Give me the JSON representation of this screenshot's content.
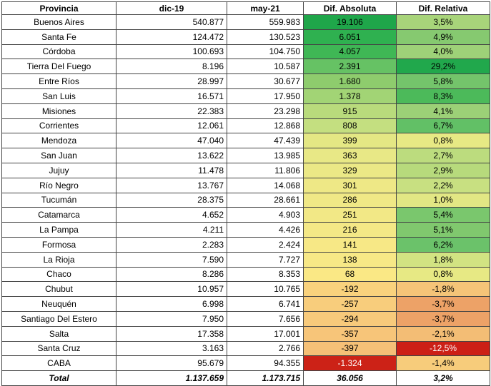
{
  "headers": [
    "Provincia",
    "dic-19",
    "may-21",
    "Dif. Absoluta",
    "Dif. Relativa"
  ],
  "rows": [
    {
      "provincia": "Buenos Aires",
      "dic19": "540.877",
      "may21": "559.983",
      "abs": "19.106",
      "rel": "3,5%",
      "abs_color": "#1fa64a",
      "rel_color": "#a8d47a"
    },
    {
      "provincia": "Santa Fe",
      "dic19": "124.472",
      "may21": "130.523",
      "abs": "6.051",
      "rel": "4,9%",
      "abs_color": "#2fb150",
      "rel_color": "#86c970"
    },
    {
      "provincia": "Córdoba",
      "dic19": "100.693",
      "may21": "104.750",
      "abs": "4.057",
      "rel": "4,0%",
      "abs_color": "#3fb755",
      "rel_color": "#9ed178"
    },
    {
      "provincia": "Tierra Del Fuego",
      "dic19": "8.196",
      "may21": "10.587",
      "abs": "2.391",
      "rel": "29,2%",
      "abs_color": "#66c264",
      "rel_color": "#21a84c"
    },
    {
      "provincia": "Entre Ríos",
      "dic19": "28.997",
      "may21": "30.677",
      "abs": "1.680",
      "rel": "5,8%",
      "abs_color": "#8ecc6d",
      "rel_color": "#74c46b"
    },
    {
      "provincia": "San Luis",
      "dic19": "16.571",
      "may21": "17.950",
      "abs": "1.378",
      "rel": "8,3%",
      "abs_color": "#a2d475",
      "rel_color": "#4cba5a"
    },
    {
      "provincia": "Misiones",
      "dic19": "22.383",
      "may21": "23.298",
      "abs": "915",
      "rel": "4,1%",
      "abs_color": "#b9db7c",
      "rel_color": "#9cd077"
    },
    {
      "provincia": "Corrientes",
      "dic19": "12.061",
      "may21": "12.868",
      "abs": "808",
      "rel": "6,7%",
      "abs_color": "#c4df80",
      "rel_color": "#62c066"
    },
    {
      "provincia": "Mendoza",
      "dic19": "47.040",
      "may21": "47.439",
      "abs": "399",
      "rel": "0,8%",
      "abs_color": "#e4e784",
      "rel_color": "#e7e984"
    },
    {
      "provincia": "San Juan",
      "dic19": "13.622",
      "may21": "13.985",
      "abs": "363",
      "rel": "2,7%",
      "abs_color": "#e8e886",
      "rel_color": "#bcdc7e"
    },
    {
      "provincia": "Jujuy",
      "dic19": "11.478",
      "may21": "11.806",
      "abs": "329",
      "rel": "2,9%",
      "abs_color": "#ebe886",
      "rel_color": "#b7da7c"
    },
    {
      "provincia": "Río Negro",
      "dic19": "13.767",
      "may21": "14.068",
      "abs": "301",
      "rel": "2,2%",
      "abs_color": "#eee886",
      "rel_color": "#c8e081"
    },
    {
      "provincia": "Tucumán",
      "dic19": "28.375",
      "may21": "28.661",
      "abs": "286",
      "rel": "1,0%",
      "abs_color": "#f0e886",
      "rel_color": "#e2e784"
    },
    {
      "provincia": "Catamarca",
      "dic19": "4.652",
      "may21": "4.903",
      "abs": "251",
      "rel": "5,4%",
      "abs_color": "#f2e886",
      "rel_color": "#7ac76d"
    },
    {
      "provincia": "La Pampa",
      "dic19": "4.211",
      "may21": "4.426",
      "abs": "216",
      "rel": "5,1%",
      "abs_color": "#f4e886",
      "rel_color": "#80c86e"
    },
    {
      "provincia": "Formosa",
      "dic19": "2.283",
      "may21": "2.424",
      "abs": "141",
      "rel": "6,2%",
      "abs_color": "#f7e886",
      "rel_color": "#6bc26a"
    },
    {
      "provincia": "La Rioja",
      "dic19": "7.590",
      "may21": "7.727",
      "abs": "138",
      "rel": "1,8%",
      "abs_color": "#f7e886",
      "rel_color": "#d2e382"
    },
    {
      "provincia": "Chaco",
      "dic19": "8.286",
      "may21": "8.353",
      "abs": "68",
      "rel": "0,8%",
      "abs_color": "#fae885",
      "rel_color": "#e7e984"
    },
    {
      "provincia": "Chubut",
      "dic19": "10.957",
      "may21": "10.765",
      "abs": "-192",
      "rel": "-1,8%",
      "abs_color": "#f9d27d",
      "rel_color": "#f5c478"
    },
    {
      "provincia": "Neuquén",
      "dic19": "6.998",
      "may21": "6.741",
      "abs": "-257",
      "rel": "-3,7%",
      "abs_color": "#f8cd7c",
      "rel_color": "#eda267"
    },
    {
      "provincia": "Santiago Del Estero",
      "dic19": "7.950",
      "may21": "7.656",
      "abs": "-294",
      "rel": "-3,7%",
      "abs_color": "#f8ca7b",
      "rel_color": "#eda267"
    },
    {
      "provincia": "Salta",
      "dic19": "17.358",
      "may21": "17.001",
      "abs": "-357",
      "rel": "-2,1%",
      "abs_color": "#f7c579",
      "rel_color": "#f3bd75"
    },
    {
      "provincia": "Santa Cruz",
      "dic19": "3.163",
      "may21": "2.766",
      "abs": "-397",
      "rel": "-12,5%",
      "abs_color": "#f5c077",
      "rel_color": "#cc1f16"
    },
    {
      "provincia": "CABA",
      "dic19": "95.679",
      "may21": "94.355",
      "abs": "-1.324",
      "rel": "-1,4%",
      "abs_color": "#cc2217",
      "rel_color": "#f7cc7b"
    }
  ],
  "total": {
    "label": "Total",
    "dic19": "1.137.659",
    "may21": "1.173.715",
    "abs": "36.056",
    "rel": "3,2%"
  }
}
